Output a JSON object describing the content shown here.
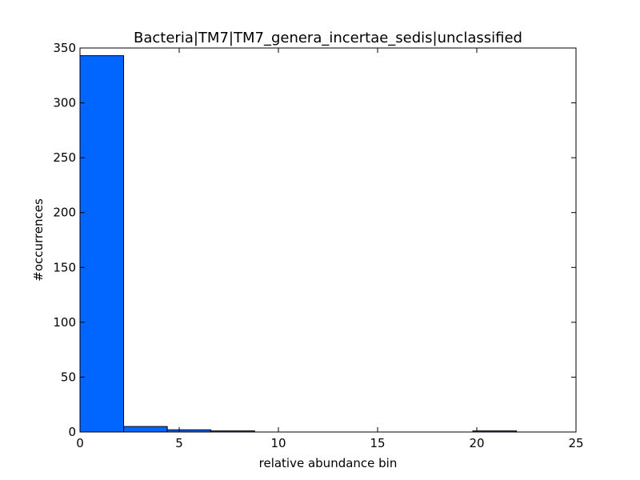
{
  "chart_data": {
    "type": "bar",
    "title": "Bacteria|TM7|TM7_genera_incertae_sedis|unclassified",
    "xlabel": "relative abundance bin",
    "ylabel": "#occurrences",
    "xlim": [
      0,
      25
    ],
    "ylim": [
      0,
      350
    ],
    "xticks": [
      0,
      5,
      10,
      15,
      20,
      25
    ],
    "yticks": [
      0,
      50,
      100,
      150,
      200,
      250,
      300,
      350
    ],
    "bins": [
      {
        "x0": 0.0,
        "x1": 2.2,
        "value": 343
      },
      {
        "x0": 2.2,
        "x1": 4.4,
        "value": 5
      },
      {
        "x0": 4.4,
        "x1": 6.6,
        "value": 2
      },
      {
        "x0": 6.6,
        "x1": 8.8,
        "value": 1
      },
      {
        "x0": 8.8,
        "x1": 11.0,
        "value": 0
      },
      {
        "x0": 11.0,
        "x1": 13.2,
        "value": 0
      },
      {
        "x0": 13.2,
        "x1": 15.4,
        "value": 0
      },
      {
        "x0": 15.4,
        "x1": 17.6,
        "value": 0
      },
      {
        "x0": 17.6,
        "x1": 19.8,
        "value": 0
      },
      {
        "x0": 19.8,
        "x1": 22.0,
        "value": 1
      }
    ],
    "bar_color": "#0066ff",
    "edge_color": "#000000",
    "grid": false
  }
}
